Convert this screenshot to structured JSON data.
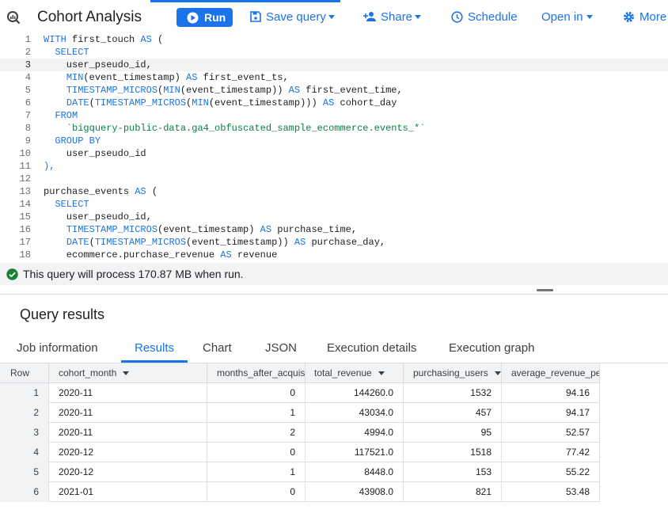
{
  "toolbar": {
    "title": "Cohort Analysis",
    "run_label": "Run",
    "save_label": "Save query",
    "share_label": "Share",
    "schedule_label": "Schedule",
    "open_label": "Open in",
    "more_label": "More"
  },
  "editor": {
    "current_line": 3,
    "lines": [
      {
        "n": "1",
        "tokens": [
          [
            "kw",
            "WITH"
          ],
          [
            "plain",
            " first_touch "
          ],
          [
            "kw",
            "AS"
          ],
          [
            "plain",
            " ("
          ]
        ]
      },
      {
        "n": "2",
        "tokens": [
          [
            "plain",
            "  "
          ],
          [
            "kw",
            "SELECT"
          ]
        ]
      },
      {
        "n": "3",
        "tokens": [
          [
            "plain",
            "    user_pseudo_id,"
          ]
        ]
      },
      {
        "n": "4",
        "tokens": [
          [
            "plain",
            "    "
          ],
          [
            "fn",
            "MIN"
          ],
          [
            "plain",
            "(event_timestamp) "
          ],
          [
            "kw",
            "AS"
          ],
          [
            "plain",
            " first_event_ts,"
          ]
        ]
      },
      {
        "n": "5",
        "tokens": [
          [
            "plain",
            "    "
          ],
          [
            "fn",
            "TIMESTAMP_MICROS"
          ],
          [
            "plain",
            "("
          ],
          [
            "fn",
            "MIN"
          ],
          [
            "plain",
            "(event_timestamp)) "
          ],
          [
            "kw",
            "AS"
          ],
          [
            "plain",
            " first_event_time,"
          ]
        ]
      },
      {
        "n": "6",
        "tokens": [
          [
            "plain",
            "    "
          ],
          [
            "fn",
            "DATE"
          ],
          [
            "plain",
            "("
          ],
          [
            "fn",
            "TIMESTAMP_MICROS"
          ],
          [
            "plain",
            "("
          ],
          [
            "fn",
            "MIN"
          ],
          [
            "plain",
            "(event_timestamp))) "
          ],
          [
            "kw",
            "AS"
          ],
          [
            "plain",
            " cohort_day"
          ]
        ]
      },
      {
        "n": "7",
        "tokens": [
          [
            "plain",
            "  "
          ],
          [
            "kw",
            "FROM"
          ]
        ]
      },
      {
        "n": "8",
        "tokens": [
          [
            "plain",
            "    "
          ],
          [
            "str",
            "`bigquery-public-data.ga4_obfuscated_sample_ecommerce.events_*`"
          ]
        ]
      },
      {
        "n": "9",
        "tokens": [
          [
            "plain",
            "  "
          ],
          [
            "kw",
            "GROUP BY"
          ]
        ]
      },
      {
        "n": "10",
        "tokens": [
          [
            "plain",
            "    user_pseudo_id"
          ]
        ]
      },
      {
        "n": "11",
        "tokens": [
          [
            "kw",
            "),"
          ]
        ]
      },
      {
        "n": "12",
        "tokens": [
          [
            "plain",
            ""
          ]
        ]
      },
      {
        "n": "13",
        "tokens": [
          [
            "plain",
            "purchase_events "
          ],
          [
            "kw",
            "AS"
          ],
          [
            "plain",
            " ("
          ]
        ]
      },
      {
        "n": "14",
        "tokens": [
          [
            "plain",
            "  "
          ],
          [
            "kw",
            "SELECT"
          ]
        ]
      },
      {
        "n": "15",
        "tokens": [
          [
            "plain",
            "    user_pseudo_id,"
          ]
        ]
      },
      {
        "n": "16",
        "tokens": [
          [
            "plain",
            "    "
          ],
          [
            "fn",
            "TIMESTAMP_MICROS"
          ],
          [
            "plain",
            "(event_timestamp) "
          ],
          [
            "kw",
            "AS"
          ],
          [
            "plain",
            " purchase_time,"
          ]
        ]
      },
      {
        "n": "17",
        "tokens": [
          [
            "plain",
            "    "
          ],
          [
            "fn",
            "DATE"
          ],
          [
            "plain",
            "("
          ],
          [
            "fn",
            "TIMESTAMP_MICROS"
          ],
          [
            "plain",
            "(event_timestamp)) "
          ],
          [
            "kw",
            "AS"
          ],
          [
            "plain",
            " purchase_day,"
          ]
        ]
      },
      {
        "n": "18",
        "tokens": [
          [
            "plain",
            "    ecommerce.purchase_revenue "
          ],
          [
            "kw",
            "AS"
          ],
          [
            "plain",
            " revenue"
          ]
        ]
      }
    ]
  },
  "validation": {
    "message": "This query will process 170.87 MB when run.",
    "status_color": "#188038"
  },
  "results": {
    "title": "Query results",
    "tabs": [
      "Job information",
      "Results",
      "Chart",
      "JSON",
      "Execution details",
      "Execution graph"
    ],
    "active_tab": 1,
    "columns": [
      "Row",
      "cohort_month",
      "months_after_acquis",
      "total_revenue",
      "purchasing_users",
      "average_revenue_per"
    ],
    "rows": [
      [
        "1",
        "2020-11",
        "0",
        "144260.0",
        "1532",
        "94.16"
      ],
      [
        "2",
        "2020-11",
        "1",
        "43034.0",
        "457",
        "94.17"
      ],
      [
        "3",
        "2020-11",
        "2",
        "4994.0",
        "95",
        "52.57"
      ],
      [
        "4",
        "2020-12",
        "0",
        "117521.0",
        "1518",
        "77.42"
      ],
      [
        "5",
        "2020-12",
        "1",
        "8448.0",
        "153",
        "55.22"
      ],
      [
        "6",
        "2021-01",
        "0",
        "43908.0",
        "821",
        "53.48"
      ]
    ]
  },
  "colors": {
    "accent": "#1a73e8",
    "keyword": "#1a73e8",
    "string": "#0b8043"
  }
}
